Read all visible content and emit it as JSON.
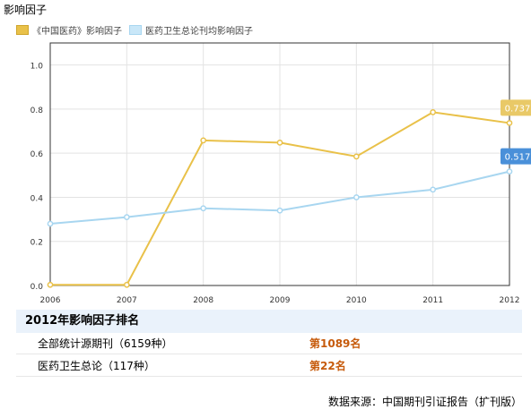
{
  "page_title": "影响因子",
  "chart_data": {
    "type": "line",
    "x": [
      "2006",
      "2007",
      "2008",
      "2009",
      "2010",
      "2011",
      "2012"
    ],
    "ylim": [
      0,
      1.1
    ],
    "yticks": [
      "0.0",
      "0.2",
      "0.4",
      "0.6",
      "0.8",
      "1.0"
    ],
    "grid": true,
    "legend_position": "top-left",
    "series": [
      {
        "name": "《中国医药》影响因子",
        "color": "#e9c149",
        "values": [
          0.003,
          0.003,
          0.658,
          0.648,
          0.585,
          0.786,
          0.737
        ],
        "end_label": "0.737",
        "label_color": "#e9c967"
      },
      {
        "name": "医药卫生总论刊均影响因子",
        "color": "#a8d6f0",
        "values": [
          0.28,
          0.31,
          0.35,
          0.34,
          0.4,
          0.435,
          0.517
        ],
        "end_label": "0.517",
        "label_color": "#4a90d9"
      }
    ]
  },
  "ranking": {
    "title": "2012年影响因子排名",
    "rows": [
      {
        "name": "全部统计源期刊（6159种）",
        "value": "第1089名"
      },
      {
        "name": "医药卫生总论（117种）",
        "value": "第22名"
      }
    ]
  },
  "source": "数据来源：中国期刊引证报告（扩刊版）"
}
